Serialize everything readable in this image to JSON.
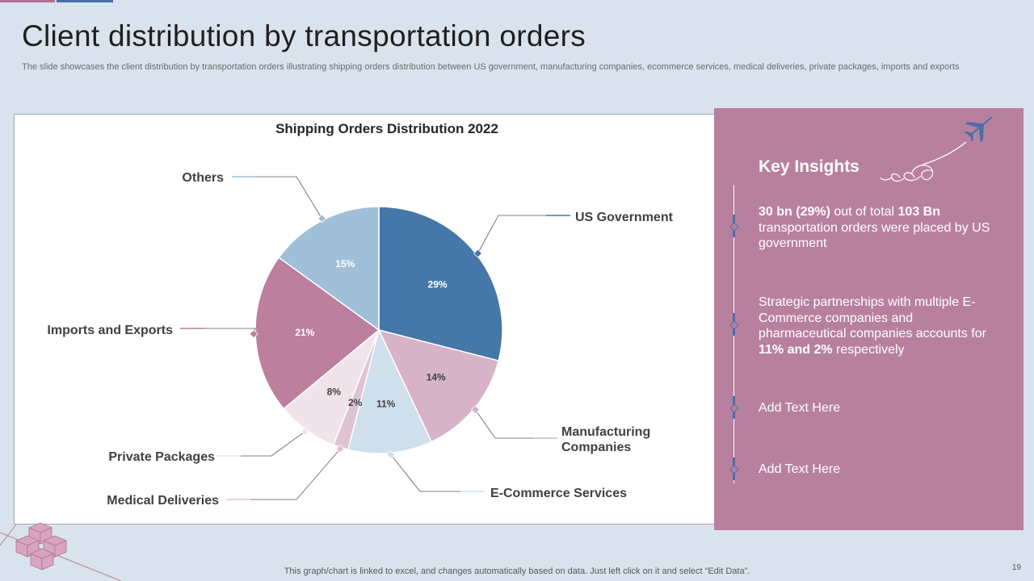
{
  "slide": {
    "title": "Client distribution by transportation orders",
    "subtitle": "The slide showcases the client distribution by transportation orders illustrating shipping orders distribution between US government, manufacturing companies, ecommerce services, medical deliveries, private packages, imports and exports",
    "footer": "This graph/chart is linked to excel,  and changes automatically based on data. Just left click on it and select “Edit Data”.",
    "page_number": "19"
  },
  "colors": {
    "background": "#d8e3ed",
    "panel": "#b8809f",
    "accent_blue": "#4a6fa5"
  },
  "chart_data": {
    "type": "pie",
    "title": "Shipping Orders Distribution 2022",
    "slices": [
      {
        "label": "US Government",
        "value": 29,
        "display": "29%",
        "color": "#4577a8",
        "text_color": "#ffffff"
      },
      {
        "label": "Manufacturing Companies",
        "lines": [
          "Manufacturing",
          "Companies"
        ],
        "value": 14,
        "display": "14%",
        "color": "#d6b3c6",
        "text_color": "#404040"
      },
      {
        "label": "E-Commerce Services",
        "value": 11,
        "display": "11%",
        "color": "#cfdfec",
        "text_color": "#404040"
      },
      {
        "label": "Medical Deliveries",
        "value": 2,
        "display": "2%",
        "color": "#e0c3d2",
        "text_color": "#404040"
      },
      {
        "label": "Private Packages",
        "value": 8,
        "display": "8%",
        "color": "#f0e3ea",
        "text_color": "#404040"
      },
      {
        "label": "Imports and Exports",
        "value": 21,
        "display": "21%",
        "color": "#bc7f9d",
        "text_color": "#ffffff"
      },
      {
        "label": "Others",
        "value": 15,
        "display": "15%",
        "color": "#a0bfd8",
        "text_color": "#ffffff"
      }
    ]
  },
  "insights": {
    "title": "Key Insights",
    "items": [
      {
        "parts": [
          [
            "b",
            "30 bn (29%)"
          ],
          [
            "t",
            " out of total "
          ],
          [
            "b",
            "103 Bn"
          ],
          [
            "t",
            " transportation orders were placed by US government"
          ]
        ]
      },
      {
        "parts": [
          [
            "t",
            "Strategic partnerships with multiple E-Commerce companies and pharmaceutical companies accounts for "
          ],
          [
            "b",
            "11% and 2%"
          ],
          [
            "t",
            " respectively"
          ]
        ]
      },
      {
        "parts": [
          [
            "t",
            "Add Text Here"
          ]
        ]
      },
      {
        "parts": [
          [
            "t",
            "Add Text Here"
          ]
        ]
      }
    ],
    "icons": [
      "airplane-icon"
    ]
  }
}
